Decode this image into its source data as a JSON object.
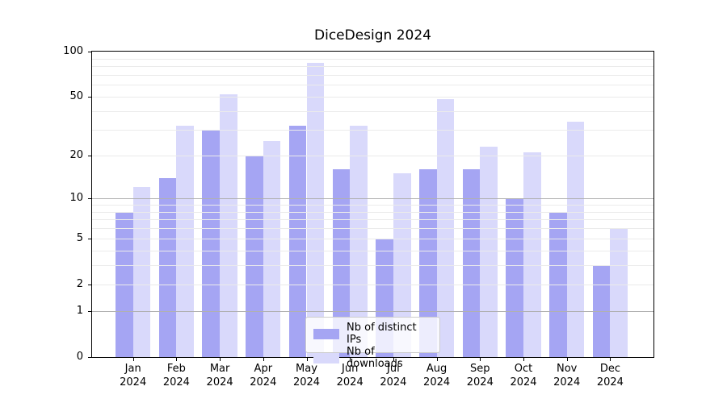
{
  "title": "DiceDesign 2024",
  "chart_data": {
    "type": "bar",
    "title": "DiceDesign 2024",
    "xlabel": "",
    "ylabel": "",
    "yscale": "log1p (y proportional to log10(value+1))",
    "ylim": [
      0,
      100
    ],
    "ytick_values": [
      100,
      50,
      20,
      10,
      5,
      2,
      1,
      0
    ],
    "major_grid": [
      1,
      10
    ],
    "minor_grid": [
      2,
      3,
      4,
      5,
      6,
      7,
      8,
      9,
      20,
      30,
      40,
      50,
      60,
      70,
      80,
      90
    ],
    "grid": true,
    "legend_position": "lower center",
    "categories": [
      {
        "month": "Jan",
        "year": "2024"
      },
      {
        "month": "Feb",
        "year": "2024"
      },
      {
        "month": "Mar",
        "year": "2024"
      },
      {
        "month": "Apr",
        "year": "2024"
      },
      {
        "month": "May",
        "year": "2024"
      },
      {
        "month": "Jun",
        "year": "2024"
      },
      {
        "month": "Jul",
        "year": "2024"
      },
      {
        "month": "Aug",
        "year": "2024"
      },
      {
        "month": "Sep",
        "year": "2024"
      },
      {
        "month": "Oct",
        "year": "2024"
      },
      {
        "month": "Nov",
        "year": "2024"
      },
      {
        "month": "Dec",
        "year": "2024"
      }
    ],
    "series": [
      {
        "name": "Nb of distinct IPs",
        "color": "#a5a5f3",
        "values": [
          8,
          14,
          30,
          20,
          32,
          16,
          5,
          16,
          16,
          10,
          8,
          3
        ]
      },
      {
        "name": "Nb of downloads",
        "color": "#d9d9fb",
        "values": [
          12,
          32,
          52,
          25,
          84,
          32,
          15,
          48,
          23,
          21,
          34,
          6
        ]
      }
    ]
  },
  "colors": {
    "major_gridline": "#b0b0b0",
    "minor_gridline": "#ebebeb",
    "axis": "#000000",
    "legend_border": "#cccccc"
  }
}
